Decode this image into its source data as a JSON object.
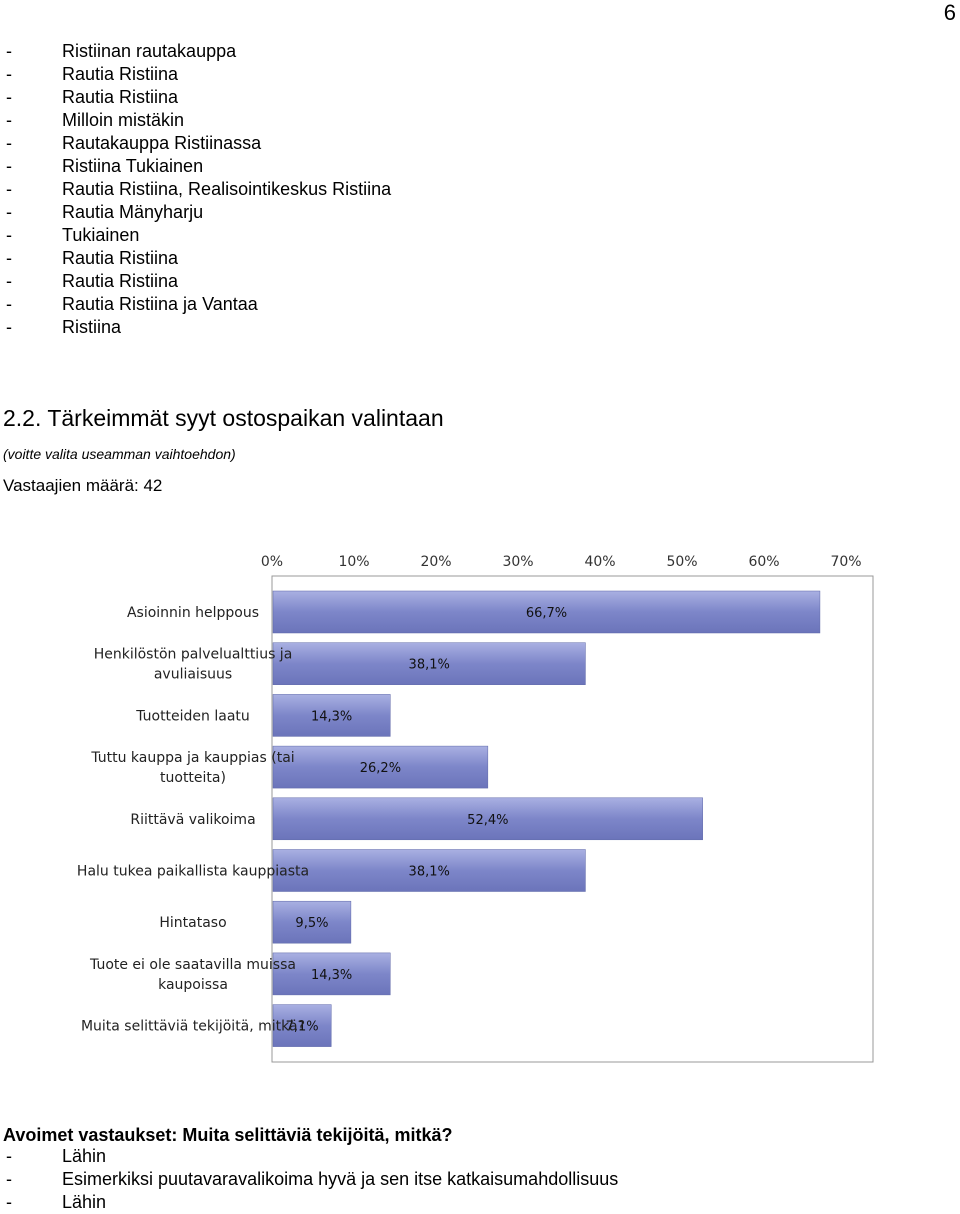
{
  "page_number": "6",
  "store_list": [
    "Ristiinan rautakauppa",
    "Rautia Ristiina",
    "Rautia Ristiina",
    "Milloin mistäkin",
    "Rautakauppa Ristiinassa",
    "Ristiina Tukiainen",
    "Rautia Ristiina, Realisointikeskus Ristiina",
    "Rautia Mänyharju",
    "Tukiainen",
    "Rautia Ristiina",
    "Rautia Ristiina",
    "Rautia Ristiina ja Vantaa",
    "Ristiina"
  ],
  "section": {
    "title": "2.2. Tärkeimmät syyt ostospaikan valintaan",
    "note": "(voitte valita useamman vaihtoehdon)",
    "respondents": "Vastaajien määrä: 42"
  },
  "chart_data": {
    "type": "bar",
    "orientation": "horizontal",
    "title": "",
    "xlabel": "",
    "ylabel": "",
    "xlim": [
      0,
      70
    ],
    "ticks": [
      "0%",
      "10%",
      "20%",
      "30%",
      "40%",
      "50%",
      "60%",
      "70%"
    ],
    "categories": [
      [
        "Asioinnin helppous"
      ],
      [
        "Henkilöstön palvelualttius ja",
        "avuliaisuus"
      ],
      [
        "Tuotteiden laatu"
      ],
      [
        "Tuttu kauppa ja kauppias (tai",
        "tuotteita)"
      ],
      [
        "Riittävä valikoima"
      ],
      [
        "Halu tukea paikallista kauppiasta"
      ],
      [
        "Hintataso"
      ],
      [
        "Tuote ei ole saatavilla muissa",
        "kaupoissa"
      ],
      [
        "Muita selittäviä tekijöitä, mitkä?"
      ]
    ],
    "values": [
      66.7,
      38.1,
      14.3,
      26.2,
      52.4,
      38.1,
      9.5,
      14.3,
      7.1
    ],
    "value_labels": [
      "66,7%",
      "38,1%",
      "14,3%",
      "26,2%",
      "52,4%",
      "38,1%",
      "9,5%",
      "14,3%",
      "7,1%"
    ],
    "bar_color": "#7d86c9",
    "grid": false
  },
  "open_answers": {
    "title": "Avoimet vastaukset: Muita selittäviä tekijöitä, mitkä?",
    "items": [
      "Lähin",
      "Esimerkiksi puutavaravalikoima hyvä ja sen itse katkaisumahdollisuus",
      "Lähin"
    ]
  }
}
